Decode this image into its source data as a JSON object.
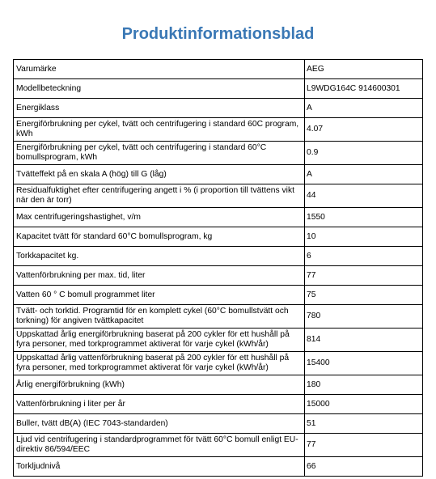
{
  "header": {
    "title": "Produktinformationsblad"
  },
  "table": {
    "rows": [
      [
        "Varumärke",
        "AEG"
      ],
      [
        "Modellbeteckning",
        "L9WDG164C 914600301"
      ],
      [
        "Energiklass",
        "A"
      ],
      [
        "Energiförbrukning per cykel, tvätt och centrifugering i standard 60C program, kWh",
        "4.07"
      ],
      [
        "Energiförbrukning per cykel, tvätt och centrifugering i standard 60°C bomullsprogram, kWh",
        "0.9"
      ],
      [
        "Tvätteffekt på en skala A (hög) till G (låg)",
        "A"
      ],
      [
        "Residualfuktighet efter centrifugering angett i % (i proportion till tvättens vikt när den är torr)",
        "44"
      ],
      [
        "Max centrifugeringshastighet, v/m",
        "1550"
      ],
      [
        "Kapacitet tvätt för standard 60°C bomullsprogram, kg",
        "10"
      ],
      [
        "Torkkapacitet kg.",
        "6"
      ],
      [
        "Vattenförbrukning per max. tid, liter",
        "77"
      ],
      [
        "Vatten 60 ° C bomull programmet liter",
        "75"
      ],
      [
        "Tvätt- och torktid. Programtid för en komplett cykel (60°C bomullstvätt och torkning) för angiven tvättkapacitet",
        "780"
      ],
      [
        "Uppskattad årlig energiförbrukning baserat på 200 cykler för ett hushåll på fyra personer, med torkprogrammet aktiverat för varje cykel (kWh/år)",
        "814"
      ],
      [
        "Uppskattad årlig vattenförbrukning baserat på 200 cykler för ett hushåll på fyra personer, med torkprogrammet aktiverat för varje cykel (kWh/år)",
        "15400"
      ],
      [
        "Årlig energiförbrukning (kWh)",
        "180"
      ],
      [
        "Vattenförbrukning i liter per år",
        "15000"
      ],
      [
        "Buller, tvätt dB(A) (IEC 7043-standarden)",
        "51"
      ],
      [
        "Ljud vid centrifugering i standardprogrammet för tvätt 60°C bomull enligt EU-direktiv 86/594/EEC",
        "77"
      ],
      [
        "Torkljudnivå",
        "66"
      ]
    ]
  }
}
